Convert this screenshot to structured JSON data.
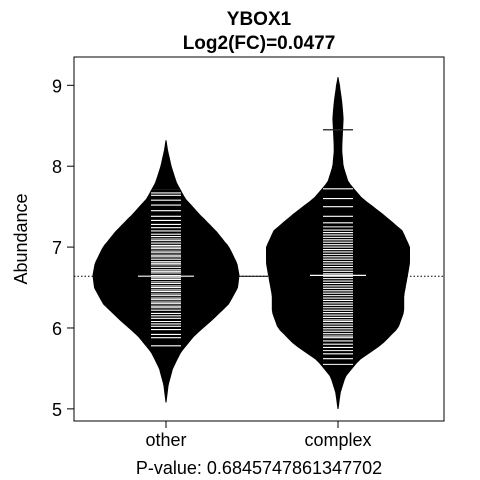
{
  "chart_data": {
    "type": "beanplot",
    "title": "YBOX1",
    "subtitle": "Log2(FC)=0.0477",
    "ylabel": "Abundance",
    "xlabel": "P-value: 0.6845747861347702",
    "categories": [
      "other",
      "complex"
    ],
    "ylim": [
      4.85,
      9.35
    ],
    "yticks": [
      5,
      6,
      7,
      8,
      9
    ],
    "grid": false,
    "overall_mean": 6.64,
    "groups": [
      {
        "name": "other",
        "mean": 6.64,
        "range": [
          5.08,
          8.32
        ],
        "density": [
          [
            5.08,
            0.0
          ],
          [
            5.3,
            0.03
          ],
          [
            5.5,
            0.09
          ],
          [
            5.7,
            0.2
          ],
          [
            5.9,
            0.38
          ],
          [
            6.1,
            0.63
          ],
          [
            6.3,
            0.86
          ],
          [
            6.5,
            0.98
          ],
          [
            6.65,
            1.0
          ],
          [
            6.8,
            0.97
          ],
          [
            7.0,
            0.86
          ],
          [
            7.2,
            0.68
          ],
          [
            7.4,
            0.46
          ],
          [
            7.6,
            0.26
          ],
          [
            7.8,
            0.14
          ],
          [
            8.0,
            0.07
          ],
          [
            8.2,
            0.02
          ],
          [
            8.32,
            0.0
          ]
        ],
        "observations": [
          5.78,
          5.88,
          5.92,
          5.98,
          6.02,
          6.05,
          6.08,
          6.12,
          6.15,
          6.18,
          6.22,
          6.25,
          6.27,
          6.3,
          6.32,
          6.35,
          6.37,
          6.4,
          6.42,
          6.45,
          6.47,
          6.5,
          6.52,
          6.55,
          6.57,
          6.6,
          6.62,
          6.65,
          6.68,
          6.7,
          6.72,
          6.75,
          6.78,
          6.8,
          6.82,
          6.85,
          6.88,
          6.9,
          6.93,
          6.95,
          6.98,
          7.0,
          7.02,
          7.05,
          7.08,
          7.1,
          7.13,
          7.16,
          7.2,
          7.24,
          7.28,
          7.33,
          7.38,
          7.45,
          7.52,
          7.58,
          7.64,
          7.67,
          7.7
        ]
      },
      {
        "name": "complex",
        "mean": 6.65,
        "range": [
          5.0,
          9.1
        ],
        "density": [
          [
            5.0,
            0.0
          ],
          [
            5.2,
            0.03
          ],
          [
            5.4,
            0.1
          ],
          [
            5.6,
            0.28
          ],
          [
            5.8,
            0.6
          ],
          [
            6.0,
            0.82
          ],
          [
            6.2,
            0.9
          ],
          [
            6.4,
            0.9
          ],
          [
            6.6,
            0.94
          ],
          [
            6.8,
            0.98
          ],
          [
            7.0,
            0.98
          ],
          [
            7.2,
            0.88
          ],
          [
            7.4,
            0.62
          ],
          [
            7.6,
            0.33
          ],
          [
            7.8,
            0.14
          ],
          [
            8.0,
            0.07
          ],
          [
            8.2,
            0.05
          ],
          [
            8.4,
            0.06
          ],
          [
            8.6,
            0.07
          ],
          [
            8.8,
            0.05
          ],
          [
            9.0,
            0.02
          ],
          [
            9.1,
            0.0
          ]
        ],
        "observations": [
          5.55,
          5.62,
          5.68,
          5.72,
          5.76,
          5.8,
          5.84,
          5.88,
          5.9,
          5.93,
          5.96,
          5.99,
          6.02,
          6.05,
          6.08,
          6.1,
          6.13,
          6.16,
          6.19,
          6.22,
          6.25,
          6.28,
          6.31,
          6.34,
          6.37,
          6.4,
          6.43,
          6.46,
          6.49,
          6.52,
          6.55,
          6.58,
          6.61,
          6.64,
          6.67,
          6.7,
          6.73,
          6.76,
          6.79,
          6.82,
          6.85,
          6.88,
          6.91,
          6.94,
          6.97,
          7.0,
          7.03,
          7.06,
          7.09,
          7.12,
          7.15,
          7.18,
          7.21,
          7.25,
          7.3,
          7.38,
          7.5,
          7.6,
          7.72,
          8.45
        ]
      }
    ]
  }
}
